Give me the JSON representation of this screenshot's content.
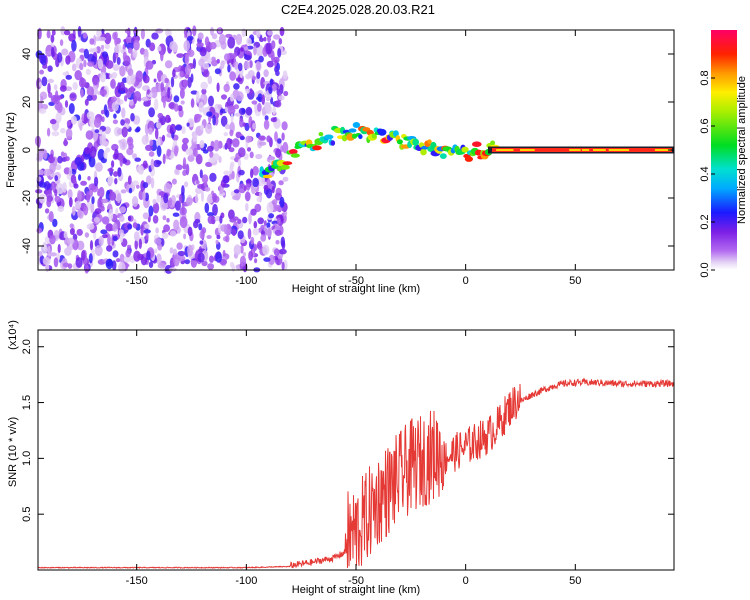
{
  "title": "C2E4.2025.028.20.03.R21",
  "chart_data": [
    {
      "type": "heatmap",
      "xlabel": "Height of straight line (km)",
      "ylabel": "Frequency (Hz)",
      "xlim": [
        -195,
        95
      ],
      "ylim": [
        -50,
        50
      ],
      "xticks": [
        -150,
        -100,
        -50,
        0,
        50
      ],
      "yticks": [
        -40,
        -20,
        0,
        20,
        40
      ],
      "colorbar": {
        "label": "Normalized spectral amplitude",
        "range": [
          0,
          1
        ],
        "ticks": [
          0.0,
          0.2,
          0.4,
          0.6,
          0.8
        ]
      },
      "features": {
        "noise_region_x": [
          -195,
          -82
        ],
        "signal_track": [
          {
            "x": -92,
            "y": -9
          },
          {
            "x": -82,
            "y": -5
          },
          {
            "x": -72,
            "y": 2
          },
          {
            "x": -60,
            "y": 6
          },
          {
            "x": -50,
            "y": 8
          },
          {
            "x": -42,
            "y": 7
          },
          {
            "x": -32,
            "y": 4
          },
          {
            "x": -22,
            "y": 2
          },
          {
            "x": -12,
            "y": 0
          },
          {
            "x": 0,
            "y": -1
          },
          {
            "x": 12,
            "y": 0
          },
          {
            "x": 95,
            "y": 0
          }
        ]
      }
    },
    {
      "type": "line",
      "xlabel": "Height of straight line (km)",
      "ylabel": "SNR (10 * v/v)",
      "yunit": "(x10⁴)",
      "xlim": [
        -195,
        95
      ],
      "ylim": [
        0,
        2.15
      ],
      "xticks": [
        -150,
        -100,
        -50,
        0,
        50
      ],
      "yticks": [
        0.5,
        1.0,
        1.5,
        2.0
      ],
      "color": "#e53935",
      "series": [
        {
          "name": "SNR",
          "x": [
            -195,
            -150,
            -100,
            -80,
            -70,
            -60,
            -55,
            -50,
            -45,
            -40,
            -35,
            -30,
            -25,
            -20,
            -15,
            -10,
            -5,
            0,
            5,
            10,
            15,
            20,
            25,
            30,
            35,
            40,
            45,
            50,
            60,
            70,
            80,
            95
          ],
          "values": [
            0.02,
            0.02,
            0.02,
            0.03,
            0.06,
            0.1,
            0.15,
            0.22,
            0.35,
            0.5,
            0.6,
            0.7,
            0.8,
            0.85,
            0.9,
            0.95,
            1.0,
            1.05,
            1.1,
            1.15,
            1.25,
            1.4,
            1.5,
            1.56,
            1.6,
            1.64,
            1.66,
            1.67,
            1.67,
            1.66,
            1.66,
            1.66
          ]
        }
      ]
    }
  ]
}
